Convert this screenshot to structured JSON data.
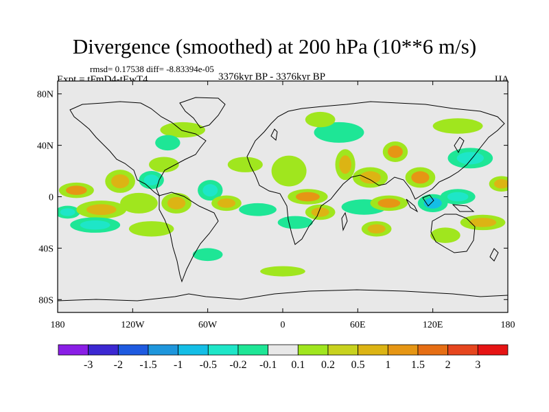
{
  "chart_data": {
    "type": "heatmap",
    "title": "Divergence (smoothed) at 200 hPa (10**6 m/s)",
    "stats_line": "rmsd= 0.17538 diff= -8.83394e-05",
    "experiment": "Expt = tFmD4-tEwT4",
    "period": "3376kyr BP - 3376kyr BP",
    "season": "JJA",
    "x_ticks": [
      "180",
      "120W",
      "60W",
      "0",
      "60E",
      "120E",
      "180"
    ],
    "x_tick_values": [
      -180,
      -120,
      -60,
      0,
      60,
      120,
      180
    ],
    "y_ticks": [
      "80N",
      "40N",
      "0",
      "40S",
      "80S"
    ],
    "y_tick_values": [
      80,
      40,
      0,
      -40,
      -80
    ],
    "xlim": [
      -180,
      180
    ],
    "ylim": [
      -90,
      90
    ],
    "colorbar": {
      "colors": [
        "#8a1ee6",
        "#3c28d2",
        "#1e5ae0",
        "#1e96dc",
        "#14bee6",
        "#1ee6c8",
        "#1ee696",
        "#e8e8e8",
        "#a0e61e",
        "#c8d21e",
        "#dcb414",
        "#e69614",
        "#e66e14",
        "#e6461e",
        "#e61414"
      ],
      "labels": [
        "-3",
        "-2",
        "-1.5",
        "-1",
        "-0.5",
        "-0.2",
        "-0.1",
        "0.1",
        "0.2",
        "0.5",
        "1",
        "1.5",
        "2",
        "3"
      ]
    },
    "blobs": [
      {
        "lon": -165,
        "lat": 5,
        "rx": 14,
        "ry": 6,
        "v": 1
      },
      {
        "lon": -172,
        "lat": -12,
        "rx": 10,
        "ry": 5,
        "v": -0.5
      },
      {
        "lon": -145,
        "lat": -10,
        "rx": 20,
        "ry": 7,
        "v": 0.5
      },
      {
        "lon": -150,
        "lat": -22,
        "rx": 20,
        "ry": 6,
        "v": -0.5
      },
      {
        "lon": -130,
        "lat": 12,
        "rx": 12,
        "ry": 9,
        "v": 0.5
      },
      {
        "lon": -115,
        "lat": -5,
        "rx": 15,
        "ry": 8,
        "v": 0.2
      },
      {
        "lon": -105,
        "lat": 13,
        "rx": 10,
        "ry": 7,
        "v": -0.5
      },
      {
        "lon": -95,
        "lat": 25,
        "rx": 12,
        "ry": 6,
        "v": 0.2
      },
      {
        "lon": -85,
        "lat": -5,
        "rx": 12,
        "ry": 8,
        "v": 0.5
      },
      {
        "lon": -105,
        "lat": -25,
        "rx": 18,
        "ry": 6,
        "v": 0.2
      },
      {
        "lon": -80,
        "lat": 52,
        "rx": 18,
        "ry": 6,
        "v": 0.2
      },
      {
        "lon": -92,
        "lat": 42,
        "rx": 10,
        "ry": 6,
        "v": -0.2
      },
      {
        "lon": -58,
        "lat": 5,
        "rx": 10,
        "ry": 8,
        "v": -0.5
      },
      {
        "lon": -45,
        "lat": -5,
        "rx": 12,
        "ry": 6,
        "v": 0.5
      },
      {
        "lon": -30,
        "lat": 25,
        "rx": 14,
        "ry": 6,
        "v": 0.2
      },
      {
        "lon": -20,
        "lat": -10,
        "rx": 15,
        "ry": 5,
        "v": -0.2
      },
      {
        "lon": 5,
        "lat": 20,
        "rx": 14,
        "ry": 12,
        "v": 0.2
      },
      {
        "lon": 20,
        "lat": 0,
        "rx": 16,
        "ry": 6,
        "v": 1
      },
      {
        "lon": 30,
        "lat": -12,
        "rx": 12,
        "ry": 6,
        "v": 0.5
      },
      {
        "lon": 10,
        "lat": -20,
        "rx": 14,
        "ry": 5,
        "v": -0.2
      },
      {
        "lon": 45,
        "lat": 50,
        "rx": 20,
        "ry": 8,
        "v": -0.2
      },
      {
        "lon": 30,
        "lat": 60,
        "rx": 12,
        "ry": 6,
        "v": 0.2
      },
      {
        "lon": 50,
        "lat": 25,
        "rx": 8,
        "ry": 12,
        "v": 0.5
      },
      {
        "lon": 70,
        "lat": 15,
        "rx": 14,
        "ry": 8,
        "v": 0.5
      },
      {
        "lon": 65,
        "lat": -8,
        "rx": 18,
        "ry": 6,
        "v": -0.2
      },
      {
        "lon": 90,
        "lat": 35,
        "rx": 10,
        "ry": 8,
        "v": 1
      },
      {
        "lon": 85,
        "lat": -5,
        "rx": 15,
        "ry": 6,
        "v": 1
      },
      {
        "lon": 75,
        "lat": -25,
        "rx": 12,
        "ry": 6,
        "v": 0.5
      },
      {
        "lon": 110,
        "lat": 15,
        "rx": 12,
        "ry": 8,
        "v": 1
      },
      {
        "lon": 120,
        "lat": -5,
        "rx": 12,
        "ry": 7,
        "v": -1
      },
      {
        "lon": 140,
        "lat": 0,
        "rx": 14,
        "ry": 6,
        "v": -0.5
      },
      {
        "lon": 150,
        "lat": 30,
        "rx": 18,
        "ry": 8,
        "v": -0.5
      },
      {
        "lon": 160,
        "lat": -20,
        "rx": 18,
        "ry": 6,
        "v": 0.5
      },
      {
        "lon": 130,
        "lat": -30,
        "rx": 12,
        "ry": 6,
        "v": 0.2
      },
      {
        "lon": 175,
        "lat": 10,
        "rx": 10,
        "ry": 6,
        "v": 0.5
      },
      {
        "lon": 140,
        "lat": 55,
        "rx": 20,
        "ry": 6,
        "v": 0.2
      },
      {
        "lon": 0,
        "lat": -58,
        "rx": 18,
        "ry": 4,
        "v": 0.2
      },
      {
        "lon": -60,
        "lat": -45,
        "rx": 12,
        "ry": 5,
        "v": -0.2
      }
    ]
  }
}
